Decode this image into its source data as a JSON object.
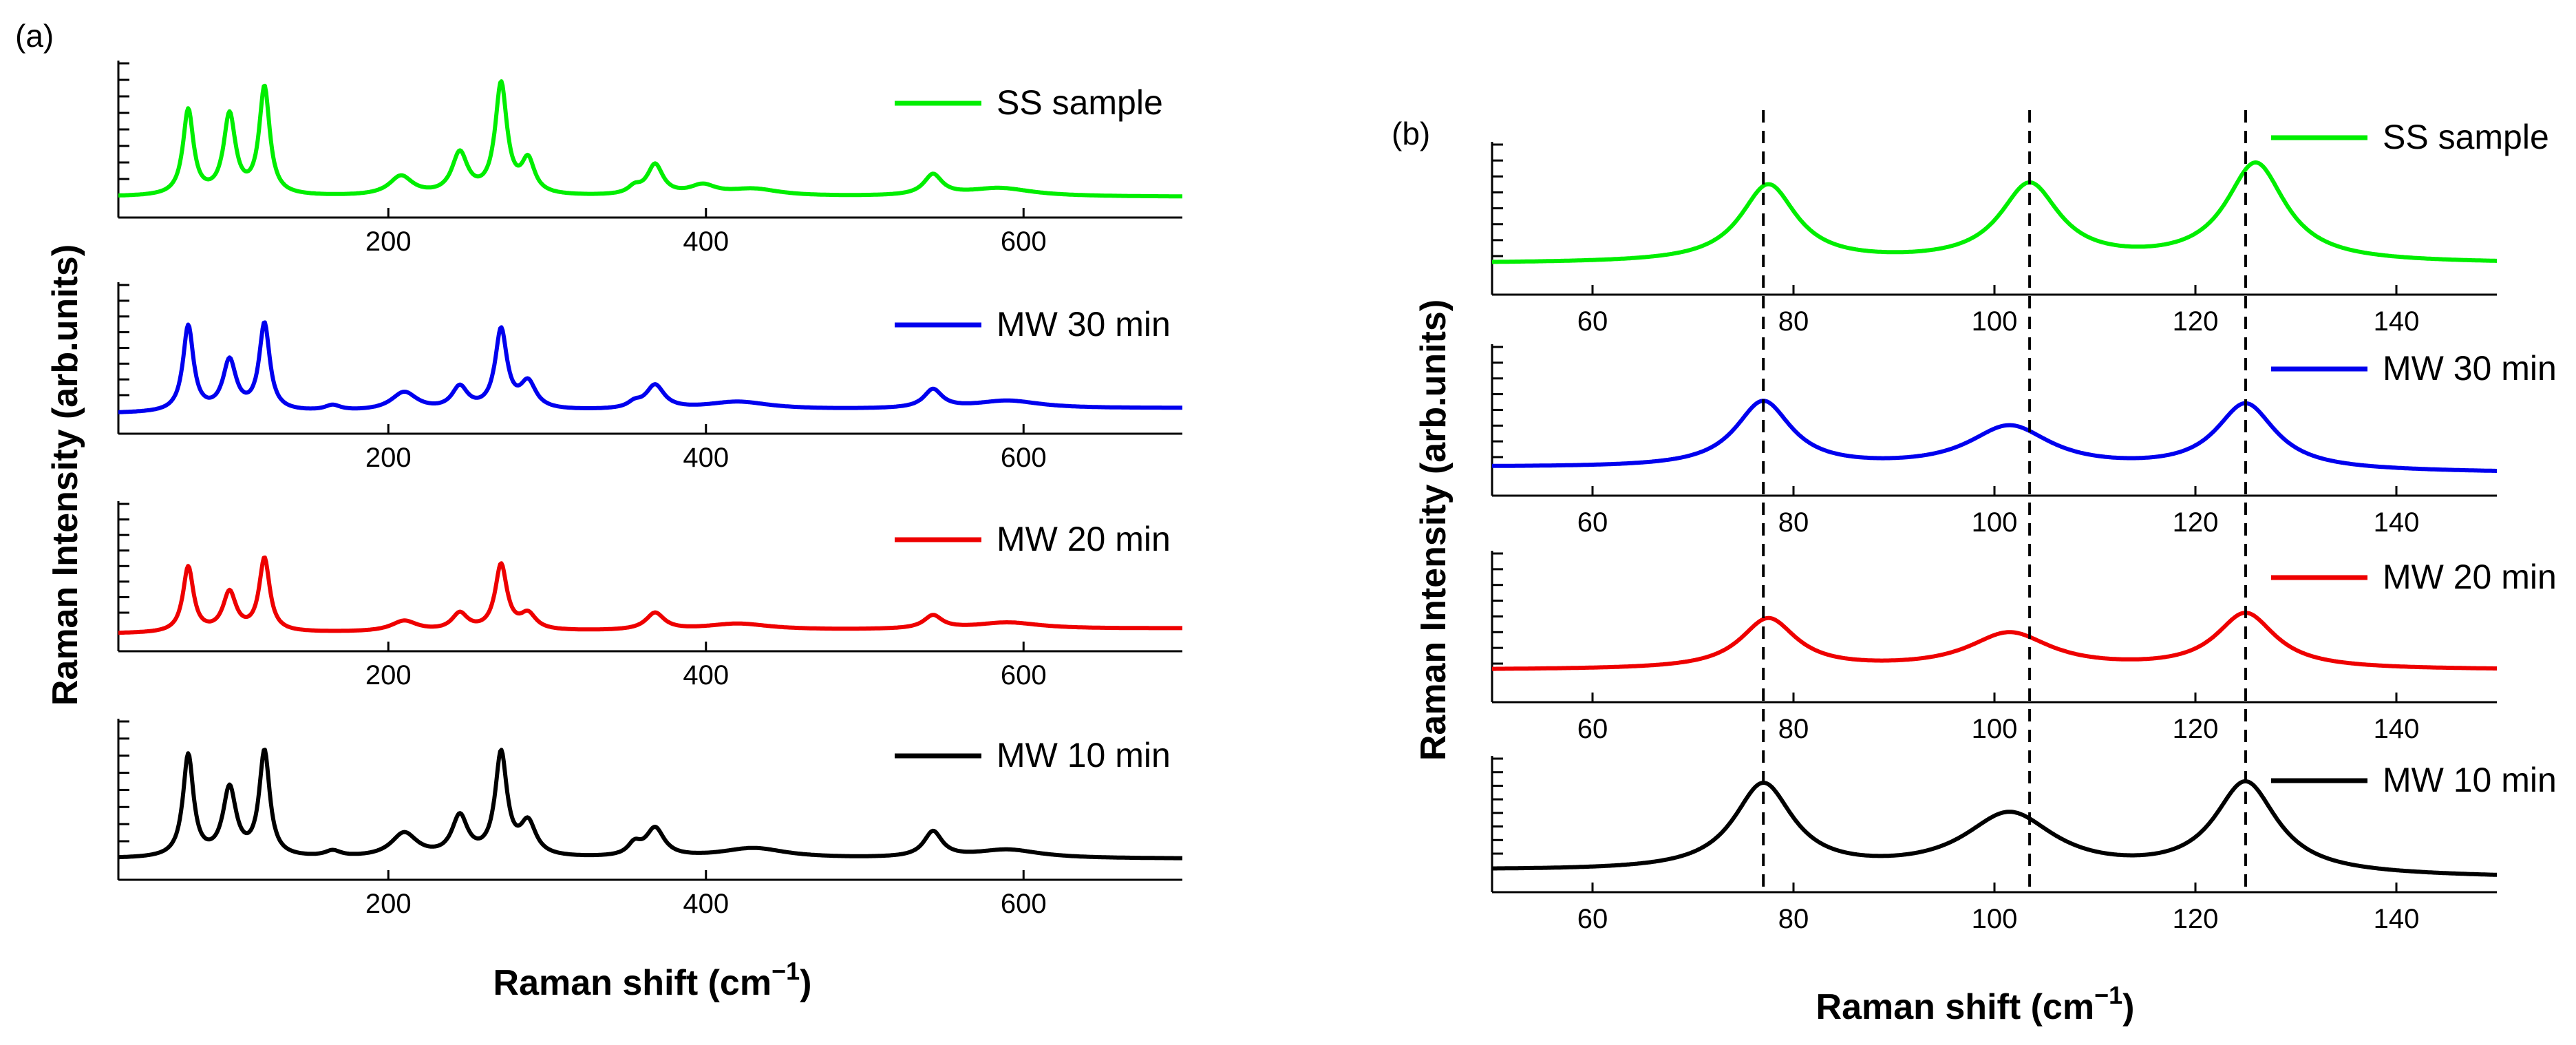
{
  "chart_data": [
    {
      "panel_label": "(a)",
      "type": "line",
      "xlabel": "Raman shift (cm",
      "xlabel_sup": "−1",
      "xlabel_tail": ")",
      "ylabel": "Raman Intensity (arb.units)",
      "xlim": [
        30,
        700
      ],
      "ylim": [
        0,
        1
      ],
      "xticks": [
        200,
        400,
        600
      ],
      "xtick_labels": [
        "200",
        "400",
        "600"
      ],
      "legend_placement": "top-right of each stacked subplot",
      "series": [
        {
          "name": "SS sample",
          "color": "#00ee00",
          "baseline": 0.08,
          "slope": 0,
          "peaks": [
            [
              74,
              0.62,
              4
            ],
            [
              100,
              0.58,
              4.5
            ],
            [
              122,
              0.78,
              4
            ],
            [
              208,
              0.14,
              9
            ],
            [
              245,
              0.3,
              6
            ],
            [
              271,
              0.8,
              4.5
            ],
            [
              288,
              0.24,
              5
            ],
            [
              355,
              0.05,
              5
            ],
            [
              368,
              0.22,
              6
            ],
            [
              398,
              0.07,
              10
            ],
            [
              430,
              0.05,
              20
            ],
            [
              543,
              0.15,
              7
            ],
            [
              585,
              0.06,
              25
            ]
          ]
        },
        {
          "name": "MW 30 min",
          "color": "#0000ee",
          "baseline": 0.12,
          "slope": -0.04,
          "peaks": [
            [
              74,
              0.65,
              4
            ],
            [
              100,
              0.38,
              5
            ],
            [
              122,
              0.66,
              4
            ],
            [
              165,
              0.04,
              6
            ],
            [
              210,
              0.14,
              10
            ],
            [
              245,
              0.17,
              6
            ],
            [
              271,
              0.6,
              4.5
            ],
            [
              288,
              0.2,
              6
            ],
            [
              355,
              0.04,
              5
            ],
            [
              368,
              0.18,
              7
            ],
            [
              420,
              0.06,
              25
            ],
            [
              543,
              0.14,
              7
            ],
            [
              590,
              0.06,
              25
            ]
          ]
        },
        {
          "name": "MW 20 min",
          "color": "#ee0000",
          "baseline": 0.1,
          "slope": -0.04,
          "peaks": [
            [
              74,
              0.5,
              4
            ],
            [
              100,
              0.3,
              5
            ],
            [
              122,
              0.56,
              4
            ],
            [
              210,
              0.08,
              10
            ],
            [
              245,
              0.13,
              6
            ],
            [
              271,
              0.5,
              4.5
            ],
            [
              288,
              0.12,
              6
            ],
            [
              368,
              0.13,
              7
            ],
            [
              420,
              0.05,
              25
            ],
            [
              543,
              0.1,
              7
            ],
            [
              590,
              0.05,
              25
            ]
          ]
        },
        {
          "name": "MW 10 min",
          "color": "#000000",
          "baseline": 0.08,
          "slope": 0,
          "peaks": [
            [
              74,
              0.72,
              4
            ],
            [
              100,
              0.48,
              5
            ],
            [
              122,
              0.74,
              4
            ],
            [
              165,
              0.04,
              6
            ],
            [
              210,
              0.17,
              10
            ],
            [
              245,
              0.28,
              6
            ],
            [
              271,
              0.72,
              4.5
            ],
            [
              288,
              0.23,
              6
            ],
            [
              355,
              0.08,
              5
            ],
            [
              368,
              0.2,
              7
            ],
            [
              430,
              0.07,
              25
            ],
            [
              543,
              0.18,
              7
            ],
            [
              590,
              0.06,
              25
            ]
          ]
        }
      ]
    },
    {
      "panel_label": "(b)",
      "type": "line",
      "xlabel": "Raman shift (cm",
      "xlabel_sup": "−1",
      "xlabel_tail": ")",
      "ylabel": "Raman Intensity (arb.units)",
      "xlim": [
        50,
        150
      ],
      "ylim": [
        0,
        1
      ],
      "xticks": [
        60,
        80,
        100,
        120,
        140
      ],
      "xtick_labels": [
        "60",
        "80",
        "100",
        "120",
        "140"
      ],
      "reference_lines_x": [
        77,
        103.5,
        125
      ],
      "legend_placement": "top-right of each stacked subplot",
      "series": [
        {
          "name": "SS sample",
          "color": "#00ee00",
          "baseline": 0.16,
          "slope": 0,
          "peaks": [
            [
              77.5,
              0.58,
              3.4
            ],
            [
              103.5,
              0.58,
              3.6
            ],
            [
              126,
              0.74,
              3.6
            ]
          ]
        },
        {
          "name": "MW 30 min",
          "color": "#0000ee",
          "baseline": 0.1,
          "slope": 0.04,
          "peaks": [
            [
              77,
              0.5,
              3.4
            ],
            [
              101.5,
              0.32,
              5
            ],
            [
              125,
              0.5,
              3.6
            ]
          ]
        },
        {
          "name": "MW 20 min",
          "color": "#ee0000",
          "baseline": 0.17,
          "slope": 0,
          "peaks": [
            [
              77.5,
              0.38,
              3.4
            ],
            [
              101.5,
              0.27,
              5
            ],
            [
              125,
              0.42,
              3.6
            ]
          ]
        },
        {
          "name": "MW 10 min",
          "color": "#000000",
          "baseline": 0.04,
          "slope": 0.06,
          "peaks": [
            [
              77,
              0.74,
              3.6
            ],
            [
              101.5,
              0.5,
              5.5
            ],
            [
              125,
              0.78,
              3.8
            ]
          ]
        }
      ]
    }
  ]
}
